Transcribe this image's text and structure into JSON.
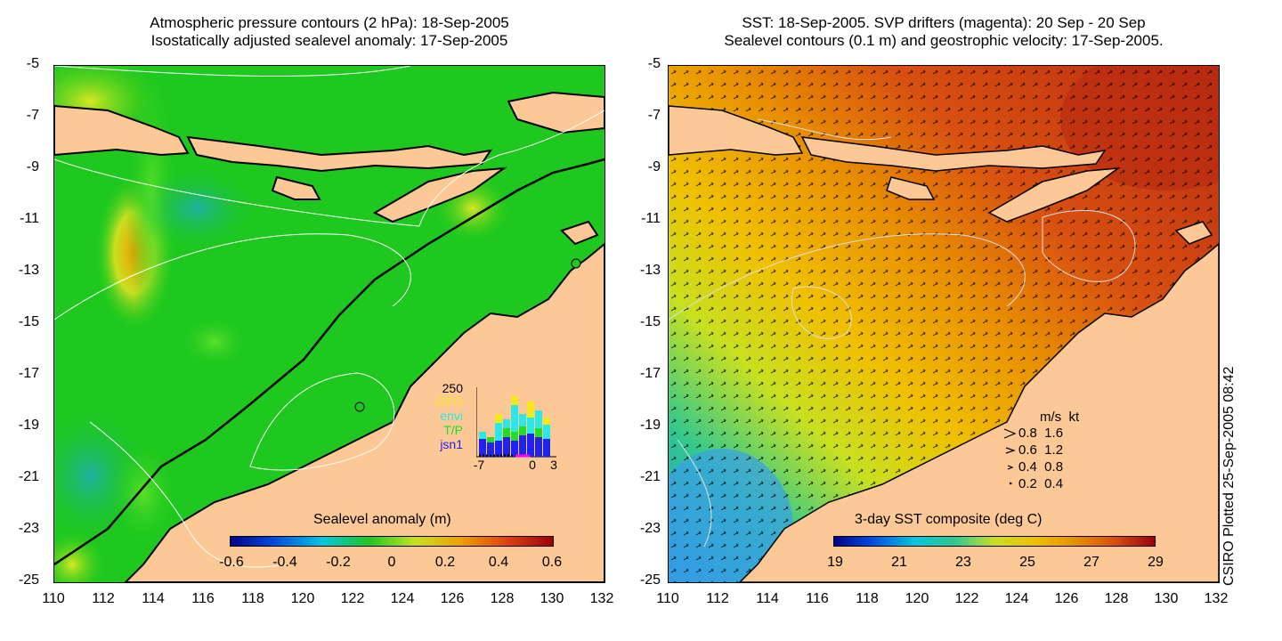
{
  "left_panel": {
    "title_line1": "Atmospheric pressure contours (2 hPa): 18-Sep-2005",
    "title_line2": "Isostatically adjusted sealevel anomaly: 17-Sep-2005",
    "colorbar_label": "Sealevel anomaly (m)",
    "colorbar_ticks": [
      "-0.6",
      "-0.4",
      "-0.2",
      "0",
      "0.2",
      "0.4",
      "0.6"
    ],
    "inset": {
      "ymax_label": "250",
      "x_labels": [
        "-7",
        "0",
        "3"
      ],
      "missions": [
        {
          "name": "GFO",
          "color": "#f5e81c"
        },
        {
          "name": "envi",
          "color": "#2ee6e6"
        },
        {
          "name": "T/P",
          "color": "#22dd22"
        },
        {
          "name": "jsn1",
          "color": "#2222ee"
        }
      ]
    }
  },
  "right_panel": {
    "title_line1": "SST: 18-Sep-2005. SVP drifters (magenta): 20 Sep - 20 Sep",
    "title_line2": "Sealevel contours (0.1 m) and geostrophic velocity: 17-Sep-2005.",
    "colorbar_label": "3-day SST composite (deg C)",
    "colorbar_ticks": [
      "19",
      "21",
      "23",
      "25",
      "27",
      "29"
    ],
    "velocity_legend": {
      "header": "m/s  kt",
      "rows": [
        "0.8  1.6",
        "0.6  1.2",
        "0.4  0.8",
        "0.2  0.4"
      ]
    }
  },
  "axes": {
    "y_ticks": [
      "-5",
      "-7",
      "-9",
      "-11",
      "-13",
      "-15",
      "-17",
      "-19",
      "-21",
      "-23",
      "-25"
    ],
    "x_ticks": [
      "110",
      "112",
      "114",
      "116",
      "118",
      "120",
      "122",
      "124",
      "126",
      "128",
      "130",
      "132"
    ]
  },
  "credit": "CSIRO Plotted 25-Sep-2005 08:42",
  "colors": {
    "land": "#fcc896",
    "sla_base": "#1ec81e",
    "sst_warm": "#c83c10"
  }
}
